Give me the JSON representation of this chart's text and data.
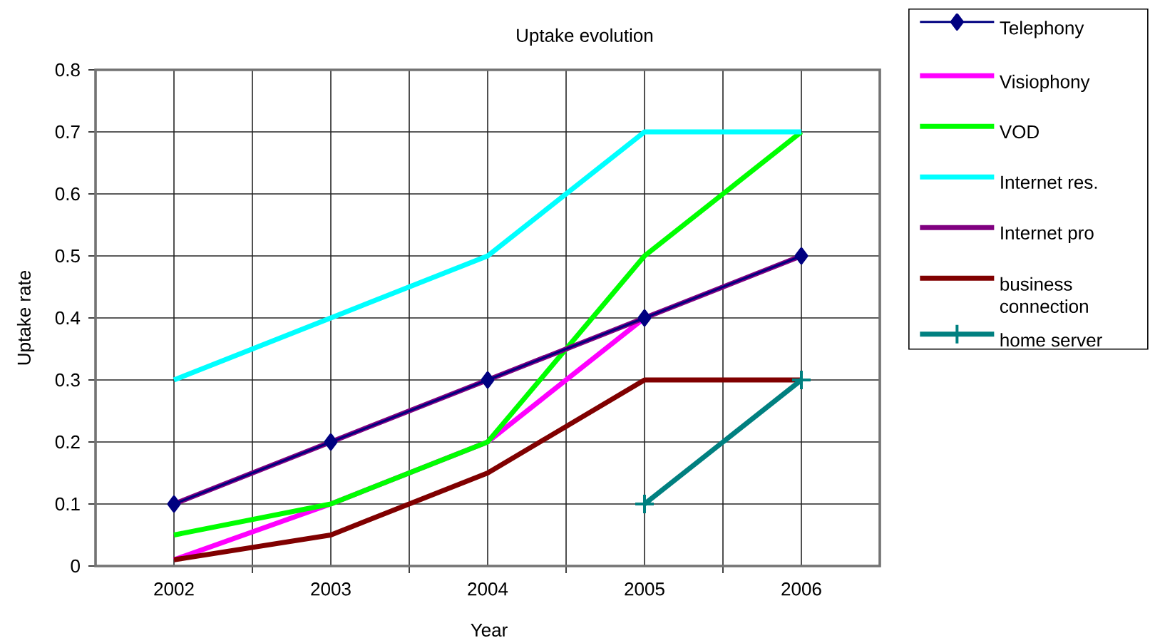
{
  "chart_data": {
    "type": "line",
    "title": "Uptake evolution",
    "xlabel": "Year",
    "ylabel": "Uptake rate",
    "categories": [
      "2002",
      "2003",
      "2004",
      "2005",
      "2006"
    ],
    "ylim": [
      0,
      0.8
    ],
    "yticks": [
      0,
      0.1,
      0.2,
      0.3,
      0.4,
      0.5,
      0.6,
      0.7,
      0.8
    ],
    "grid": true,
    "legend": "right",
    "line_style": "solid",
    "series": [
      {
        "name": "Telephony",
        "color": "#000080",
        "marker": "diamond",
        "values": [
          0.1,
          0.2,
          0.3,
          0.4,
          0.5
        ]
      },
      {
        "name": "Visiophony",
        "color": "#ff00ff",
        "marker": "none",
        "values": [
          0.01,
          0.1,
          0.2,
          0.4,
          null
        ]
      },
      {
        "name": "VOD",
        "color": "#00ff00",
        "marker": "none",
        "values": [
          0.05,
          0.1,
          0.2,
          0.5,
          0.7
        ]
      },
      {
        "name": "Internet res.",
        "color": "#00ffff",
        "marker": "none",
        "values": [
          0.3,
          0.4,
          0.5,
          0.7,
          0.7
        ]
      },
      {
        "name": "Internet pro",
        "color": "#800080",
        "marker": "none",
        "values": [
          0.1,
          0.2,
          0.3,
          0.4,
          0.5
        ]
      },
      {
        "name": "business connection",
        "color": "#800000",
        "marker": "none",
        "values": [
          0.01,
          0.05,
          0.15,
          0.3,
          0.3
        ]
      },
      {
        "name": "home server",
        "color": "#008080",
        "marker": "cross",
        "values": [
          null,
          null,
          null,
          0.1,
          0.3
        ]
      }
    ]
  }
}
